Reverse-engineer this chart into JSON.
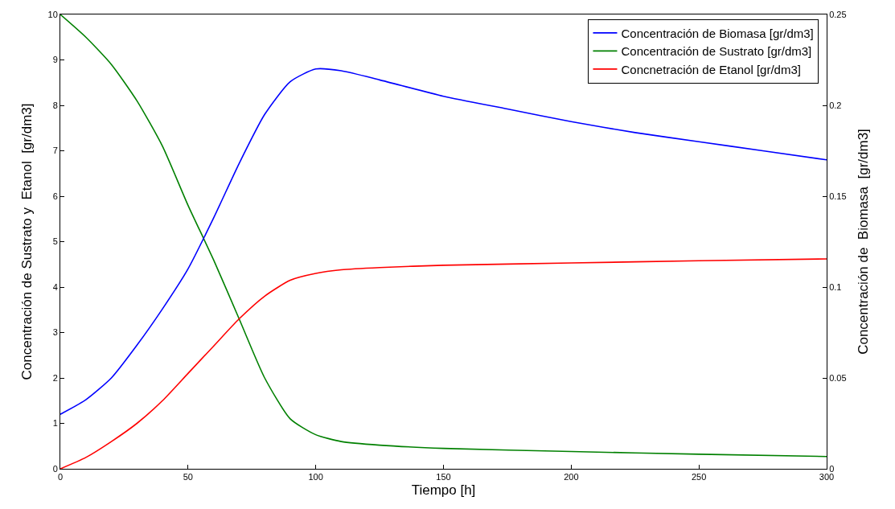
{
  "chart_data": {
    "type": "line",
    "xlabel": "Tiempo [h]",
    "ylabel": "Concentración de Sustrato y  Etanol  [gr/dm3]",
    "y2label": "Concentración de  Biomasa  [gr/dm3]",
    "xlim": [
      0,
      300
    ],
    "xticks": [
      0,
      50,
      100,
      150,
      200,
      250,
      300
    ],
    "ylim": [
      0,
      10
    ],
    "yticks": [
      0,
      1,
      2,
      3,
      4,
      5,
      6,
      7,
      8,
      9,
      10
    ],
    "y2lim": [
      0,
      0.25
    ],
    "y2ticks": [
      0,
      0.05,
      0.1,
      0.15,
      0.2,
      0.25
    ],
    "legend": "top right",
    "marker": "none",
    "line_style": "solid",
    "series": [
      {
        "name": "Concentración de Biomasa [gr/dm3]",
        "color": "#0000ff",
        "axis": "y2",
        "x": [
          0,
          10,
          20,
          30,
          40,
          50,
          60,
          70,
          80,
          90,
          100,
          110,
          125,
          150,
          175,
          200,
          225,
          250,
          275,
          300
        ],
        "values": [
          0.03,
          0.038,
          0.05,
          0.068,
          0.088,
          0.11,
          0.138,
          0.168,
          0.195,
          0.213,
          0.22,
          0.219,
          0.214,
          0.205,
          0.198,
          0.191,
          0.185,
          0.18,
          0.175,
          0.17
        ]
      },
      {
        "name": "Concentración de Sustrato [gr/dm3]",
        "color": "#008000",
        "x": [
          0,
          10,
          20,
          30,
          40,
          50,
          60,
          70,
          80,
          90,
          100,
          110,
          125,
          150,
          200,
          250,
          300
        ],
        "values": [
          10,
          9.5,
          8.9,
          8.1,
          7.1,
          5.8,
          4.6,
          3.3,
          2.0,
          1.1,
          0.75,
          0.6,
          0.52,
          0.45,
          0.38,
          0.32,
          0.27
        ]
      },
      {
        "name": "Concnetración de Etanol [gr/dm3]",
        "color": "#ff0000",
        "x": [
          0,
          10,
          20,
          30,
          40,
          50,
          60,
          70,
          80,
          90,
          100,
          110,
          125,
          150,
          200,
          250,
          300
        ],
        "values": [
          0,
          0.25,
          0.6,
          1.0,
          1.5,
          2.1,
          2.7,
          3.3,
          3.8,
          4.15,
          4.3,
          4.38,
          4.43,
          4.48,
          4.53,
          4.58,
          4.62
        ]
      }
    ]
  }
}
